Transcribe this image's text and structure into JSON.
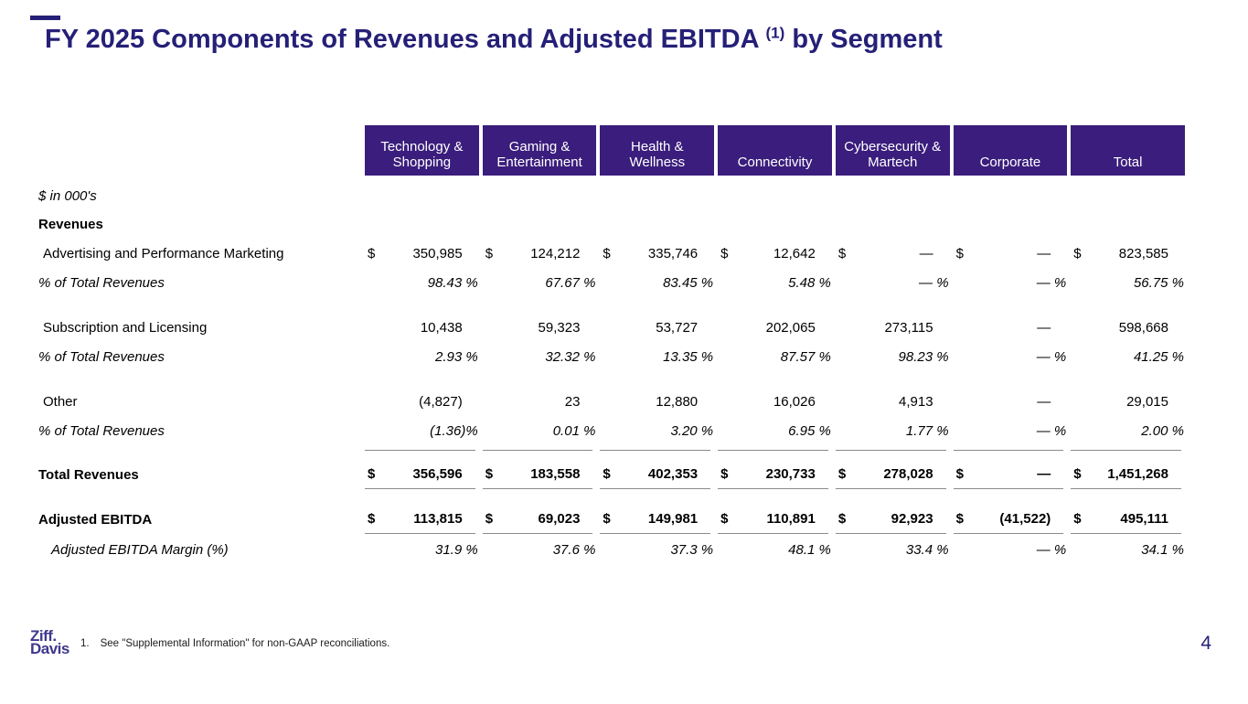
{
  "title": {
    "main": "FY 2025 Components of Revenues and Adjusted EBITDA",
    "superscript": "(1)",
    "tail": "by Segment"
  },
  "colors": {
    "header_bg": "#3a1d7c",
    "title_navy": "#252077",
    "logo_purple": "#3f388c",
    "rule_gray": "#8a8a8a"
  },
  "table": {
    "columns": [
      "Technology & Shopping",
      "Gaming & Entertainment",
      "Health & Wellness",
      "Connectivity",
      "Cybersecurity & Martech",
      "Corporate",
      "Total"
    ],
    "rows": [
      {
        "type": "note",
        "label": "$ in 000's",
        "indent": 0,
        "italic": true
      },
      {
        "type": "section",
        "label": "Revenues",
        "indent": 0,
        "bold": true
      },
      {
        "type": "data",
        "label": "Advertising and Performance Marketing",
        "indent": 1,
        "dollar": true,
        "values": [
          "350,985",
          "124,212",
          "335,746",
          "12,642",
          "—",
          "—",
          "823,585"
        ]
      },
      {
        "type": "pct",
        "label": "% of Total Revenues",
        "indent": 0,
        "values": [
          "98.43 %",
          "67.67 %",
          "83.45 %",
          "5.48 %",
          "— %",
          "— %",
          "56.75 %"
        ]
      },
      {
        "type": "spacer"
      },
      {
        "type": "data",
        "label": "Subscription and Licensing",
        "indent": 1,
        "dollar": false,
        "values": [
          "10,438",
          "59,323",
          "53,727",
          "202,065",
          "273,115",
          "—",
          "598,668"
        ]
      },
      {
        "type": "pct",
        "label": "% of Total Revenues",
        "indent": 0,
        "values": [
          "2.93 %",
          "32.32 %",
          "13.35 %",
          "87.57 %",
          "98.23 %",
          "— %",
          "41.25 %"
        ]
      },
      {
        "type": "spacer"
      },
      {
        "type": "data",
        "label": "Other",
        "indent": 1,
        "dollar": false,
        "values": [
          "(4,827)",
          "23",
          "12,880",
          "16,026",
          "4,913",
          "—",
          "29,015"
        ]
      },
      {
        "type": "pct",
        "label": "% of Total Revenues",
        "indent": 0,
        "values": [
          "(1.36)%",
          "0.01 %",
          "3.20 %",
          "6.95 %",
          "1.77 %",
          "— %",
          "2.00 %"
        ]
      },
      {
        "type": "rule"
      },
      {
        "type": "total",
        "label": "Total Revenues",
        "indent": 0,
        "dollar": true,
        "values": [
          "356,596",
          "183,558",
          "402,353",
          "230,733",
          "278,028",
          "—",
          "1,451,268"
        ]
      },
      {
        "type": "spacer"
      },
      {
        "type": "total",
        "label": "Adjusted EBITDA",
        "indent": 0,
        "dollar": true,
        "values": [
          "113,815",
          "69,023",
          "149,981",
          "110,891",
          "92,923",
          "(41,522)",
          "495,111"
        ]
      },
      {
        "type": "pct_last",
        "label": "Adjusted EBITDA Margin (%)",
        "indent": 2,
        "values": [
          "31.9 %",
          "37.6 %",
          "37.3 %",
          "48.1 %",
          "33.4 %",
          "— %",
          "34.1 %"
        ]
      }
    ]
  },
  "footer": {
    "logo_line1": "Ziff.",
    "logo_line2": "Davis",
    "footnote_number": "1.",
    "footnote_text": "See \"Supplemental Information\" for non-GAAP reconciliations.",
    "page_number": "4"
  }
}
